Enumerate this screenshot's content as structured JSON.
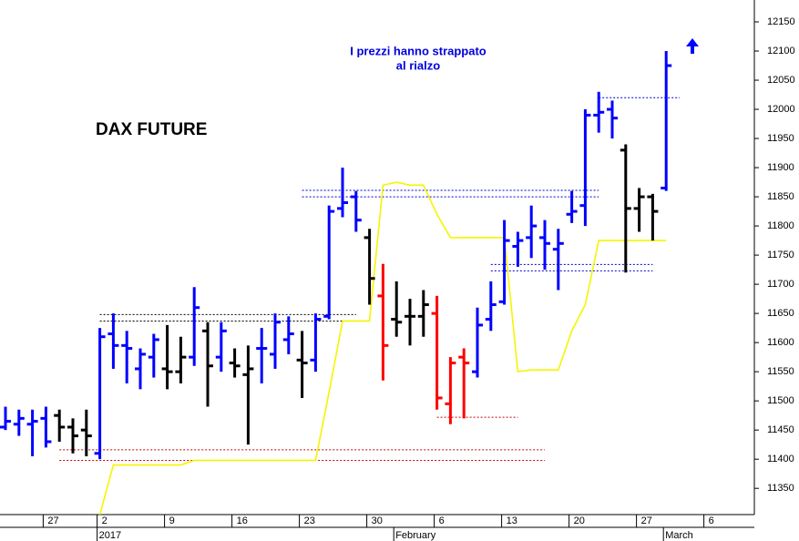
{
  "chart_data": {
    "type": "ohlc",
    "title": "DAX FUTURE",
    "annotation": [
      "I prezzi hanno strappato",
      "al rialzo"
    ],
    "categories": [
      null,
      null,
      null,
      "27",
      null,
      null,
      null,
      "2",
      null,
      null,
      null,
      null,
      "9",
      null,
      null,
      null,
      null,
      "16",
      null,
      null,
      null,
      null,
      "23",
      null,
      null,
      null,
      null,
      "30",
      null,
      null,
      null,
      null,
      "6",
      null,
      null,
      null,
      null,
      "13",
      null,
      null,
      null,
      null,
      "20",
      null,
      null,
      null,
      null,
      "27",
      null,
      null,
      null,
      null,
      "6"
    ],
    "categories_row2": [
      null,
      null,
      null,
      null,
      null,
      null,
      null,
      "2017",
      null,
      null,
      null,
      null,
      null,
      null,
      null,
      null,
      null,
      null,
      null,
      null,
      null,
      null,
      null,
      null,
      null,
      null,
      null,
      null,
      null,
      "February",
      null,
      null,
      null,
      null,
      null,
      null,
      null,
      null,
      null,
      null,
      null,
      null,
      null,
      null,
      null,
      null,
      null,
      null,
      null,
      "March",
      null,
      null,
      null
    ],
    "open": [
      11455,
      11460,
      11460,
      11470,
      11475,
      11455,
      11450,
      11410,
      11615,
      11595,
      11555,
      11575,
      11555,
      11550,
      11575,
      11620,
      11575,
      11565,
      11545,
      11590,
      11580,
      11605,
      11570,
      11570,
      11645,
      11830,
      11850,
      11780,
      11680,
      11640,
      11645,
      11645,
      11650,
      11495,
      11575,
      11550,
      11640,
      11670,
      11765,
      11780,
      11780,
      11760,
      11820,
      11835,
      11990,
      12000,
      11930,
      11830,
      11850,
      11865,
      null,
      null,
      null
    ],
    "high": [
      11490,
      11485,
      11485,
      11490,
      11485,
      11470,
      11485,
      11625,
      11650,
      11620,
      11590,
      11615,
      11630,
      11610,
      11695,
      11635,
      11635,
      11590,
      11595,
      11625,
      11650,
      11645,
      11620,
      11650,
      11835,
      11900,
      11860,
      11795,
      11735,
      11705,
      11675,
      11690,
      11680,
      11575,
      11590,
      11660,
      11705,
      11810,
      11790,
      11835,
      11810,
      11795,
      11860,
      12000,
      12030,
      12015,
      11940,
      11865,
      11855,
      12100,
      null,
      null,
      null
    ],
    "low": [
      11450,
      11440,
      11405,
      11420,
      11430,
      11410,
      11405,
      11400,
      11555,
      11530,
      11520,
      11540,
      11520,
      11530,
      11560,
      11490,
      11550,
      11540,
      11425,
      11530,
      11555,
      11580,
      11505,
      11550,
      11640,
      11815,
      11790,
      11665,
      11535,
      11610,
      11595,
      11610,
      11485,
      11460,
      11470,
      11540,
      11620,
      11665,
      11730,
      11745,
      11725,
      11690,
      11805,
      11800,
      11960,
      11950,
      11720,
      11790,
      11775,
      11860,
      null,
      null,
      null
    ],
    "close": [
      11465,
      11470,
      11465,
      11430,
      11455,
      11440,
      11440,
      11610,
      11595,
      11590,
      11580,
      11605,
      11550,
      11575,
      11660,
      11560,
      11620,
      11560,
      11555,
      11590,
      11635,
      11615,
      11565,
      11640,
      11825,
      11840,
      11810,
      11710,
      11595,
      11635,
      11645,
      11665,
      11505,
      11565,
      11565,
      11630,
      11665,
      11775,
      11775,
      11800,
      11770,
      11770,
      11825,
      11990,
      11995,
      11985,
      11830,
      11850,
      11825,
      12075,
      null,
      null,
      null
    ],
    "colors": [
      "#0000ff",
      "#0000ff",
      "#0000ff",
      "#0000ff",
      "#000000",
      "#000000",
      "#000000",
      "#0000ff",
      "#0000ff",
      "#0000ff",
      "#0000ff",
      "#0000ff",
      "#000000",
      "#000000",
      "#0000ff",
      "#000000",
      "#0000ff",
      "#000000",
      "#000000",
      "#0000ff",
      "#0000ff",
      "#0000ff",
      "#000000",
      "#0000ff",
      "#0000ff",
      "#0000ff",
      "#0000ff",
      "#000000",
      "#ff0000",
      "#000000",
      "#000000",
      "#000000",
      "#ff0000",
      "#ff0000",
      "#ff0000",
      "#0000ff",
      "#0000ff",
      "#0000ff",
      "#0000ff",
      "#0000ff",
      "#0000ff",
      "#0000ff",
      "#0000ff",
      "#0000ff",
      "#0000ff",
      "#0000ff",
      "#000000",
      "#000000",
      "#000000",
      "#0000ff",
      null,
      null,
      null
    ],
    "support_line": {
      "color": "#f5f500",
      "values": [
        null,
        null,
        null,
        null,
        null,
        null,
        null,
        11305,
        11390,
        11390,
        11390,
        11390,
        11390,
        11390,
        11398,
        11398,
        11398,
        11398,
        11398,
        11398,
        11398,
        11398,
        11398,
        11398,
        11515,
        11637,
        11637,
        11637,
        11870,
        11875,
        11870,
        11870,
        11820,
        11780,
        11780,
        11780,
        11780,
        11780,
        11550,
        11553,
        11553,
        11553,
        11620,
        11665,
        11775,
        11775,
        11775,
        11775,
        11775,
        11775,
        null,
        null,
        null
      ]
    },
    "levels": [
      {
        "value": 11648,
        "start": 7,
        "end": 26,
        "color": "#000000"
      },
      {
        "value": 11637,
        "start": 7,
        "end": 26,
        "color": "#000000"
      },
      {
        "value": 11416,
        "start": 4,
        "end": 40,
        "color": "#cc0000"
      },
      {
        "value": 11398,
        "start": 4,
        "end": 40,
        "color": "#cc0000"
      },
      {
        "value": 11472,
        "start": 32,
        "end": 38,
        "color": "#cc0000"
      },
      {
        "value": 11861,
        "start": 22,
        "end": 44,
        "color": "#0000cc"
      },
      {
        "value": 11850,
        "start": 22,
        "end": 44,
        "color": "#0000cc"
      },
      {
        "value": 11734,
        "start": 36,
        "end": 48,
        "color": "#0000cc"
      },
      {
        "value": 11723,
        "start": 36,
        "end": 48,
        "color": "#0000cc"
      },
      {
        "value": 12020,
        "start": 44,
        "end": 50,
        "color": "#0000cc"
      }
    ],
    "ylim": [
      11305,
      12187.5
    ],
    "yticks": [
      11350,
      11400,
      11450,
      11500,
      11550,
      11600,
      11650,
      11700,
      11750,
      11800,
      11850,
      11900,
      11950,
      12000,
      12050,
      12100,
      12150
    ],
    "grid": false
  }
}
